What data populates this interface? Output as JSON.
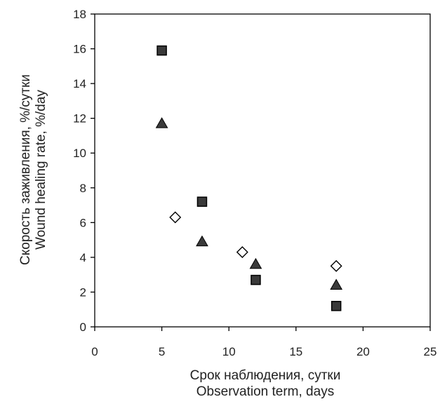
{
  "chart_data": {
    "type": "scatter",
    "xlabel": [
      "Срок наблюдения, сутки",
      "Observation term, days"
    ],
    "ylabel": [
      "Скорость заживления, %/сутки",
      "Wound healing rate, %/day"
    ],
    "xlim": [
      0,
      25
    ],
    "ylim": [
      0,
      18
    ],
    "xticks": [
      0,
      5,
      10,
      15,
      20,
      25
    ],
    "yticks": [
      0,
      2,
      4,
      6,
      8,
      10,
      12,
      14,
      16,
      18
    ],
    "grid": false,
    "legend": "none",
    "series": [
      {
        "marker": "square",
        "fill": "#3a3a3a",
        "stroke": "#000000",
        "points": [
          {
            "x": 5,
            "y": 15.9
          },
          {
            "x": 8,
            "y": 7.2
          },
          {
            "x": 12,
            "y": 2.7
          },
          {
            "x": 18,
            "y": 1.2
          }
        ]
      },
      {
        "marker": "triangle",
        "fill": "#3a3a3a",
        "stroke": "#000000",
        "points": [
          {
            "x": 5,
            "y": 11.7
          },
          {
            "x": 8,
            "y": 4.9
          },
          {
            "x": 12,
            "y": 3.6
          },
          {
            "x": 18,
            "y": 2.4
          }
        ]
      },
      {
        "marker": "diamond",
        "fill": "#ffffff",
        "stroke": "#000000",
        "points": [
          {
            "x": 6,
            "y": 6.3
          },
          {
            "x": 11,
            "y": 4.3
          },
          {
            "x": 18,
            "y": 3.5
          }
        ]
      }
    ]
  }
}
